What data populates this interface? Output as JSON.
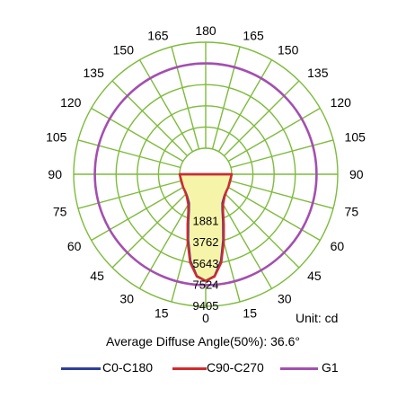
{
  "chart_data": {
    "type": "polar-intensity",
    "angle_labels": {
      "left": [
        "0",
        "15",
        "30",
        "45",
        "60",
        "75",
        "90",
        "105",
        "120",
        "135",
        "150",
        "165",
        "180"
      ],
      "right": [
        "15",
        "30",
        "45",
        "60",
        "75",
        "90",
        "105",
        "120",
        "135",
        "150",
        "165"
      ]
    },
    "angles": [
      0,
      15,
      30,
      45,
      60,
      75,
      90,
      105,
      120,
      135,
      150,
      165,
      180
    ],
    "ring_values": [
      1881,
      3762,
      5643,
      7524,
      9405
    ],
    "ring_labels": [
      "1881",
      "3762",
      "5643",
      "7524",
      "9405"
    ],
    "r_max": 9405,
    "grid": true,
    "series": [
      {
        "name": "C0-C180",
        "color": "#2b3f9e",
        "points": [
          [
            0,
            7150
          ],
          [
            5,
            6750
          ],
          [
            10,
            5500
          ],
          [
            15,
            3700
          ],
          [
            20,
            2200
          ],
          [
            25,
            1200
          ],
          [
            30,
            650
          ],
          [
            40,
            250
          ],
          [
            50,
            60
          ],
          [
            60,
            0
          ],
          [
            90,
            0
          ]
        ]
      },
      {
        "name": "C90-C270",
        "color": "#d42a2a",
        "points": [
          [
            0,
            7150
          ],
          [
            5,
            6800
          ],
          [
            10,
            5650
          ],
          [
            15,
            3900
          ],
          [
            20,
            2400
          ],
          [
            25,
            1350
          ],
          [
            30,
            780
          ],
          [
            40,
            300
          ],
          [
            50,
            80
          ],
          [
            60,
            0
          ],
          [
            90,
            0
          ]
        ]
      },
      {
        "name": "G1",
        "color": "#a34fb0",
        "constant": 7524
      }
    ],
    "unit": "Unit: cd",
    "annotation": "Average Diffuse Angle(50%): 36.6°",
    "legend_position": "bottom"
  },
  "colors": {
    "grid": "#7dbb3c",
    "fill": "#f6f4a8"
  }
}
